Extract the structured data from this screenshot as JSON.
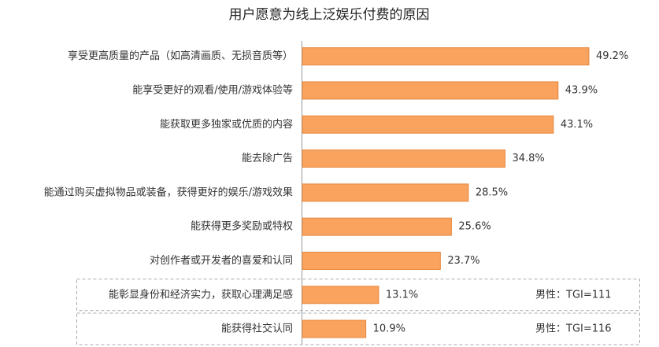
{
  "chart_data": {
    "type": "barh",
    "title": "用户愿意为线上泛娱乐付费的原因",
    "categories": [
      "享受更高质量的产品（如高清画质、无损音质等）",
      "能享受更好的观看/使用/游戏体验等",
      "能获取更多独家或优质的内容",
      "能去除广告",
      "能通过购买虚拟物品或装备，获得更好的娱乐/游戏效果",
      "能获得更多奖励或特权",
      "对创作者或开发者的喜爱和认同",
      "能彰显身份和经济实力，获取心理满足感",
      "能获得社交认同"
    ],
    "values": [
      49.2,
      43.9,
      43.1,
      34.8,
      28.5,
      25.6,
      23.7,
      13.1,
      10.9
    ],
    "value_labels": [
      "49.2%",
      "43.9%",
      "43.1%",
      "34.8%",
      "28.5%",
      "25.6%",
      "23.7%",
      "13.1%",
      "10.9%"
    ],
    "color": "#f9a35f",
    "annotations": [
      "男性：TGI=111",
      "男性：TGI=116"
    ]
  }
}
